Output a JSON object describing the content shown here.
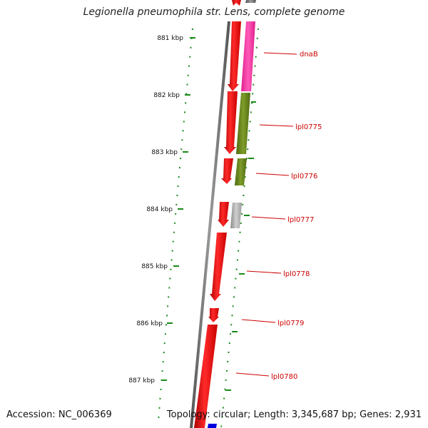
{
  "header": {
    "title": "Legionella pneumophila str. Lens, complete genome"
  },
  "footer": {
    "accession": "Accession: NC_006369",
    "summary": "Topology: circular; Length: 3,345,687 bp; Genes: 2,931"
  },
  "ruler": {
    "ticks": [
      "881 kbp",
      "882 kbp",
      "883 kbp",
      "884 kbp",
      "885 kbp",
      "886 kbp",
      "887 kbp"
    ]
  },
  "genes": [
    {
      "name": "dnaB",
      "color": "#ff3fa8"
    },
    {
      "name": "lpl0775",
      "color": "#6e8a1e"
    },
    {
      "name": "lpl0776",
      "color": "#6e8a1e"
    },
    {
      "name": "lpl0777",
      "color": "#b8b8b8"
    },
    {
      "name": "lpl0778",
      "color": "#ff0000"
    },
    {
      "name": "lpl0779",
      "color": "#ff0000"
    },
    {
      "name": "lpl0780",
      "color": "#ff0000"
    }
  ],
  "colors": {
    "cds_forward": "#ff0000",
    "backbone": "#7a7a7a",
    "tick": "#1a8a1a",
    "label": "#cc0000",
    "bottom_feature": "#0000dd"
  }
}
